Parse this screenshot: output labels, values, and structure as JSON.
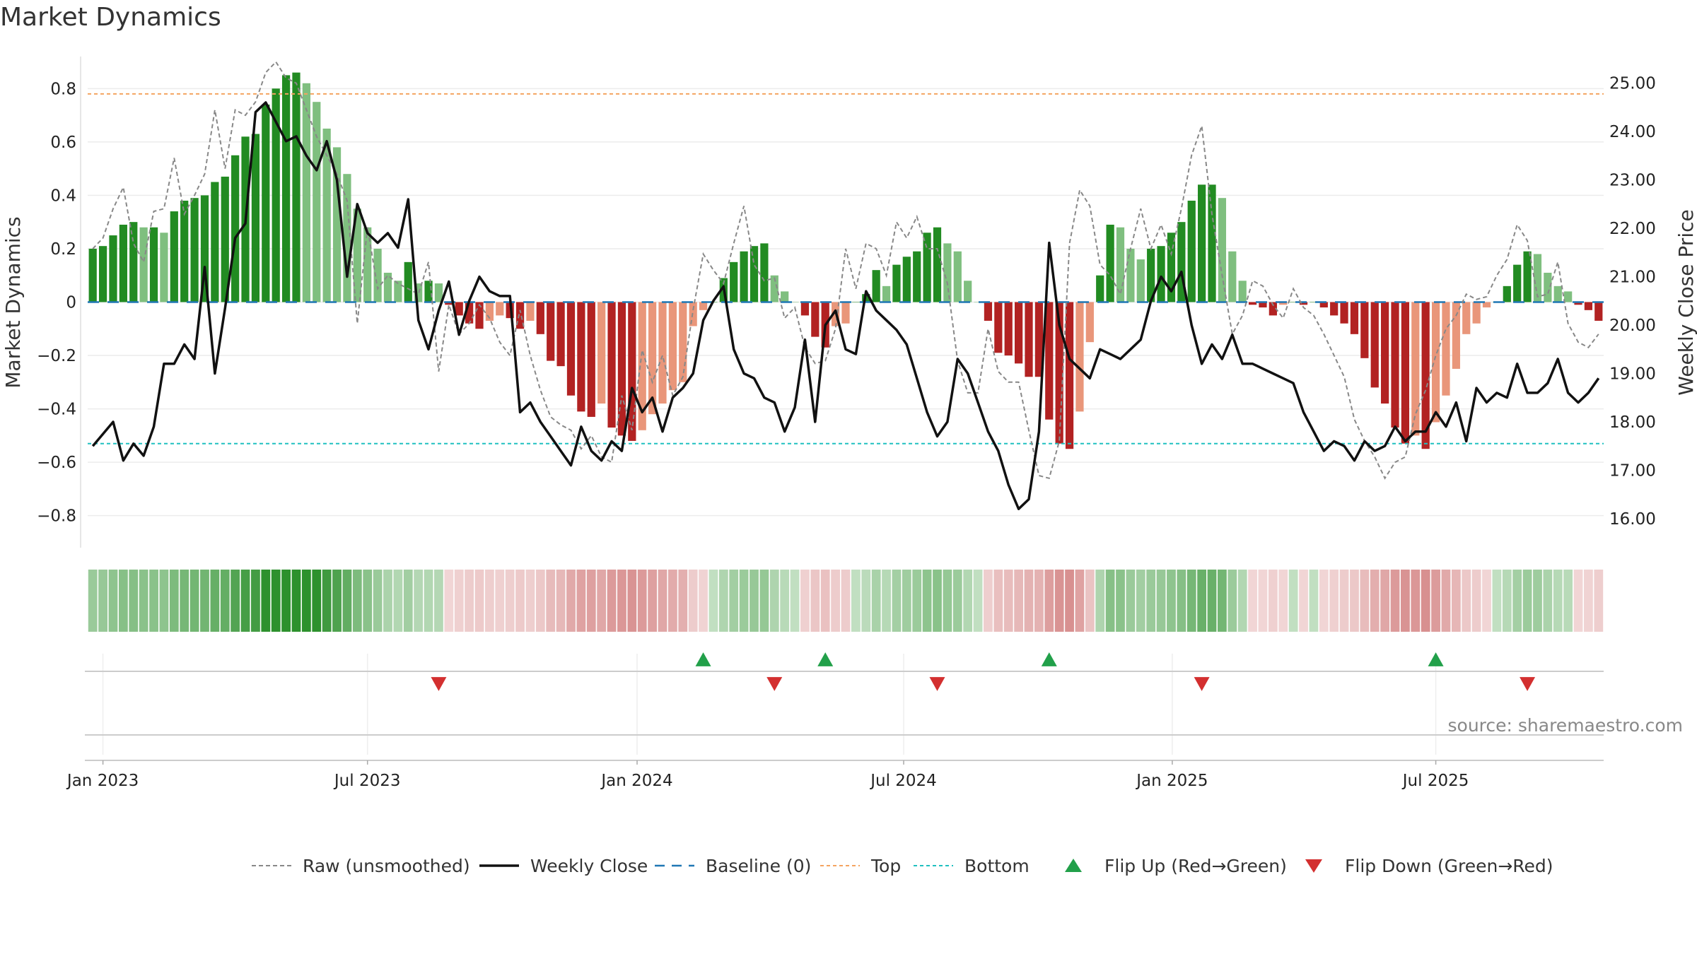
{
  "chart_data": {
    "type": "composite",
    "title": "Market Dynamics",
    "source": "source: sharemaestro.com",
    "left_axis": {
      "label": "Market Dynamics",
      "ylim": [
        -0.92,
        0.92
      ],
      "ticks": [
        {
          "value": 0.8,
          "label": "0.8"
        },
        {
          "value": 0.6,
          "label": "0.6"
        },
        {
          "value": 0.4,
          "label": "0.4"
        },
        {
          "value": 0.2,
          "label": "0.2"
        },
        {
          "value": 0,
          "label": "0"
        },
        {
          "value": -0.2,
          "label": "−0.2"
        },
        {
          "value": -0.4,
          "label": "−0.4"
        },
        {
          "value": -0.6,
          "label": "−0.6"
        },
        {
          "value": -0.8,
          "label": "−0.8"
        }
      ]
    },
    "right_axis": {
      "label": "Weekly Close Price",
      "ylim": [
        15.4,
        25.55
      ],
      "ticks": [
        {
          "value": 25,
          "label": "25.00"
        },
        {
          "value": 24,
          "label": "24.00"
        },
        {
          "value": 23,
          "label": "23.00"
        },
        {
          "value": 22,
          "label": "22.00"
        },
        {
          "value": 21,
          "label": "21.00"
        },
        {
          "value": 20,
          "label": "20.00"
        },
        {
          "value": 19,
          "label": "19.00"
        },
        {
          "value": 18,
          "label": "18.00"
        },
        {
          "value": 17,
          "label": "17.00"
        },
        {
          "value": 16,
          "label": "16.00"
        }
      ]
    },
    "x_axis": {
      "start": "2022-12-26",
      "end": "2025-10-06",
      "week_count": 146,
      "ticks": [
        {
          "week": 1,
          "label": "Jan 2023"
        },
        {
          "week": 27,
          "label": "Jul 2023"
        },
        {
          "week": 53.5,
          "label": "Jan 2024"
        },
        {
          "week": 79.7,
          "label": "Jul 2024"
        },
        {
          "week": 106.1,
          "label": "Jan 2025"
        },
        {
          "week": 132,
          "label": "Jul 2025"
        }
      ]
    },
    "reference_lines": {
      "baseline": 0,
      "top": 0.78,
      "bottom": -0.53
    },
    "bar_values": [
      0.2,
      0.21,
      0.25,
      0.29,
      0.3,
      0.28,
      0.28,
      0.26,
      0.34,
      0.38,
      0.39,
      0.4,
      0.45,
      0.47,
      0.55,
      0.62,
      0.63,
      0.74,
      0.8,
      0.85,
      0.86,
      0.82,
      0.75,
      0.65,
      0.58,
      0.48,
      0.35,
      0.28,
      0.2,
      0.11,
      0.08,
      0.15,
      0.07,
      0.08,
      0.07,
      -0.01,
      -0.05,
      -0.08,
      -0.1,
      -0.07,
      -0.05,
      -0.06,
      -0.1,
      -0.07,
      -0.12,
      -0.22,
      -0.24,
      -0.35,
      -0.41,
      -0.43,
      -0.38,
      -0.47,
      -0.5,
      -0.52,
      -0.48,
      -0.42,
      -0.38,
      -0.33,
      -0.3,
      -0.09,
      -0.03,
      0,
      0.09,
      0.15,
      0.19,
      0.21,
      0.22,
      0.1,
      0.04,
      0,
      -0.05,
      -0.13,
      -0.17,
      -0.09,
      -0.08,
      0,
      0.03,
      0.12,
      0.06,
      0.14,
      0.17,
      0.19,
      0.26,
      0.28,
      0.22,
      0.19,
      0.08,
      0,
      -0.07,
      -0.19,
      -0.2,
      -0.23,
      -0.28,
      -0.28,
      -0.44,
      -0.53,
      -0.55,
      -0.41,
      -0.15,
      0.1,
      0.29,
      0.28,
      0.2,
      0.16,
      0.2,
      0.21,
      0.26,
      0.3,
      0.38,
      0.44,
      0.44,
      0.39,
      0.19,
      0.08,
      -0.01,
      -0.02,
      -0.05,
      -0.01,
      0,
      -0.01,
      0,
      -0.02,
      -0.05,
      -0.08,
      -0.12,
      -0.21,
      -0.32,
      -0.38,
      -0.47,
      -0.53,
      -0.5,
      -0.55,
      -0.45,
      -0.35,
      -0.25,
      -0.12,
      -0.08,
      -0.02,
      0,
      0.06,
      0.14,
      0.19,
      0.18,
      0.11,
      0.06,
      0.04,
      -0.01,
      -0.03,
      -0.07
    ],
    "raw_values": [
      0.2,
      0.24,
      0.35,
      0.43,
      0.22,
      0.15,
      0.34,
      0.35,
      0.54,
      0.33,
      0.4,
      0.48,
      0.72,
      0.5,
      0.72,
      0.7,
      0.75,
      0.86,
      0.9,
      0.84,
      0.82,
      0.72,
      0.62,
      0.55,
      0.48,
      0.38,
      -0.08,
      0.28,
      0.05,
      0.1,
      0.07,
      0.05,
      0.03,
      0.15,
      -0.26,
      -0.01,
      -0.12,
      -0.08,
      -0.01,
      -0.06,
      -0.15,
      -0.2,
      -0.03,
      -0.2,
      -0.33,
      -0.43,
      -0.46,
      -0.48,
      -0.55,
      -0.5,
      -0.58,
      -0.6,
      -0.35,
      -0.48,
      -0.18,
      -0.3,
      -0.2,
      -0.35,
      -0.28,
      -0.03,
      0.18,
      0.12,
      0.07,
      0.22,
      0.36,
      0.14,
      0.08,
      0.09,
      -0.06,
      -0.02,
      -0.17,
      -0.23,
      -0.22,
      -0.1,
      0.2,
      0.05,
      0.22,
      0.2,
      0.1,
      0.3,
      0.24,
      0.32,
      0.2,
      0.2,
      0.07,
      -0.22,
      -0.34,
      -0.34,
      -0.1,
      -0.26,
      -0.3,
      -0.3,
      -0.48,
      -0.65,
      -0.66,
      -0.52,
      0.22,
      0.42,
      0.36,
      0.14,
      0.1,
      0.03,
      0.2,
      0.35,
      0.2,
      0.29,
      0.18,
      0.35,
      0.55,
      0.66,
      0.33,
      0.1,
      -0.12,
      -0.05,
      0.08,
      0.06,
      -0.01,
      -0.06,
      0.05,
      -0.02,
      -0.05,
      -0.12,
      -0.2,
      -0.28,
      -0.44,
      -0.52,
      -0.58,
      -0.66,
      -0.6,
      -0.58,
      -0.42,
      -0.33,
      -0.2,
      -0.1,
      -0.05,
      0.03,
      0.01,
      0.02,
      0.1,
      0.16,
      0.29,
      0.23,
      0.02,
      0.03,
      0.15,
      -0.08,
      -0.15,
      -0.17,
      -0.12
    ],
    "close_values": [
      17.5,
      17.75,
      18.0,
      17.2,
      17.55,
      17.3,
      17.9,
      19.2,
      19.2,
      19.6,
      19.3,
      21.2,
      19.0,
      20.35,
      21.8,
      22.1,
      24.4,
      24.6,
      24.2,
      23.8,
      23.9,
      23.5,
      23.2,
      23.8,
      23.0,
      21.0,
      22.5,
      21.9,
      21.7,
      21.9,
      21.6,
      22.6,
      20.1,
      19.5,
      20.3,
      20.9,
      19.8,
      20.5,
      21.0,
      20.7,
      20.6,
      20.6,
      18.2,
      18.4,
      18.0,
      17.7,
      17.4,
      17.1,
      17.9,
      17.4,
      17.2,
      17.6,
      17.4,
      18.7,
      18.2,
      18.5,
      17.8,
      18.5,
      18.7,
      19.0,
      20.1,
      20.5,
      20.8,
      19.5,
      19.0,
      18.9,
      18.5,
      18.4,
      17.8,
      18.3,
      19.7,
      18.0,
      20.0,
      20.3,
      19.5,
      19.4,
      20.7,
      20.3,
      20.1,
      19.9,
      19.6,
      18.9,
      18.2,
      17.7,
      18.0,
      19.3,
      19.0,
      18.4,
      17.8,
      17.4,
      16.7,
      16.2,
      16.4,
      17.8,
      21.7,
      20.0,
      19.3,
      19.1,
      18.9,
      19.5,
      19.4,
      19.3,
      19.5,
      19.7,
      20.5,
      21.0,
      20.7,
      21.1,
      20.0,
      19.2,
      19.6,
      19.3,
      19.8,
      19.2,
      19.2,
      19.1,
      19.0,
      18.9,
      18.8,
      18.2,
      17.8,
      17.4,
      17.6,
      17.5,
      17.2,
      17.6,
      17.4,
      17.5,
      17.9,
      17.6,
      17.8,
      17.8,
      18.2,
      17.9,
      18.4,
      17.6,
      18.7,
      18.4,
      18.6,
      18.5,
      19.2,
      18.6,
      18.6,
      18.8,
      19.3,
      18.6,
      18.4,
      18.6,
      18.9
    ],
    "flip_up_weeks": [
      60,
      72,
      94,
      132
    ],
    "flip_down_weeks": [
      34,
      67,
      83,
      109,
      141
    ],
    "legend": [
      {
        "key": "raw",
        "label": "Raw (unsmoothed)"
      },
      {
        "key": "close",
        "label": "Weekly Close"
      },
      {
        "key": "baseline",
        "label": "Baseline (0)"
      },
      {
        "key": "top",
        "label": "Top"
      },
      {
        "key": "bottom",
        "label": "Bottom"
      },
      {
        "key": "flip_up",
        "label": "Flip Up (Red→Green)"
      },
      {
        "key": "flip_down",
        "label": "Flip Down (Green→Red)"
      }
    ],
    "colors": {
      "green_strong": "#228b22",
      "green_light": "#7fbf7f",
      "red_strong": "#b22222",
      "red_light": "#e9967a",
      "close_line": "#111111",
      "raw_line": "#888888",
      "baseline": "#1f77b4",
      "top": "#f4a460",
      "bottom": "#20c0c0",
      "flip_up": "#22a04a",
      "flip_down": "#d32f2f"
    }
  }
}
